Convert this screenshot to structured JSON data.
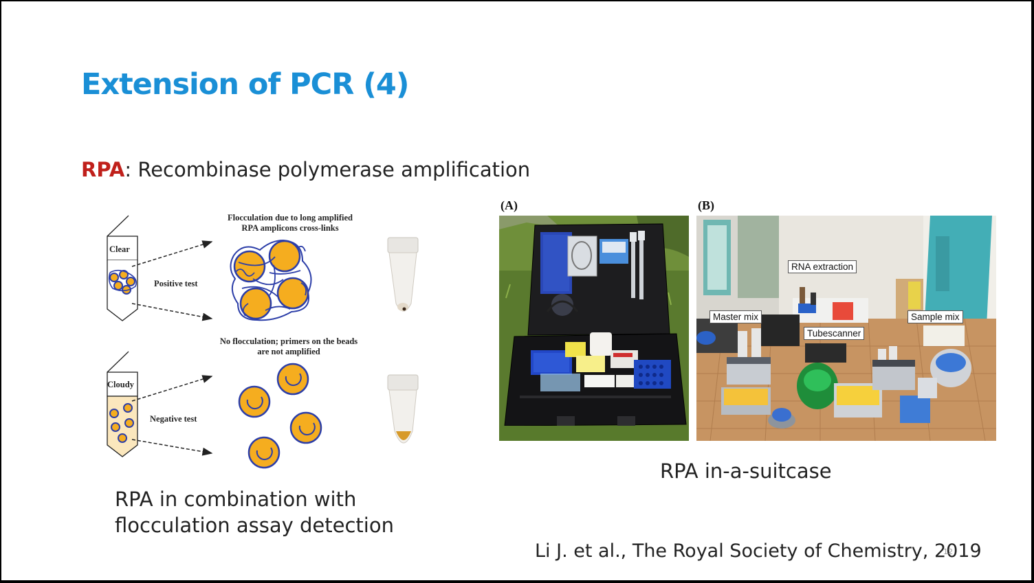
{
  "slide": {
    "title": "Extension of PCR (4)",
    "subtitle_acronym": "RPA",
    "subtitle_rest": ": Recombinase polymerase amplification",
    "citation": "Li J. et al., The Royal Society of Chemistry, 2019",
    "page_number": "12"
  },
  "diagram": {
    "top_caption_line1": "Flocculation due to long amplified",
    "top_caption_line2": "RPA amplicons cross-links",
    "tube_clear": "Clear",
    "positive_label": "Positive test",
    "bottom_caption_line1": "No flocculation; primers on the beads",
    "bottom_caption_line2": "are not amplified",
    "tube_cloudy": "Cloudy",
    "negative_label": "Negative test",
    "colors": {
      "bead": "#f5ad1f",
      "primer": "#2c3ea8",
      "cloudy": "#fbe7bd"
    }
  },
  "left_caption": {
    "line1": "RPA in combination with",
    "line2": "flocculation assay detection"
  },
  "photos": {
    "panel_a_label": "(A)",
    "panel_b_label": "(B)",
    "label_rna": "RNA extraction",
    "label_master": "Master mix",
    "label_sample": "Sample mix",
    "label_tube": "Tubescanner"
  },
  "right_caption": "RPA in-a-suitcase"
}
